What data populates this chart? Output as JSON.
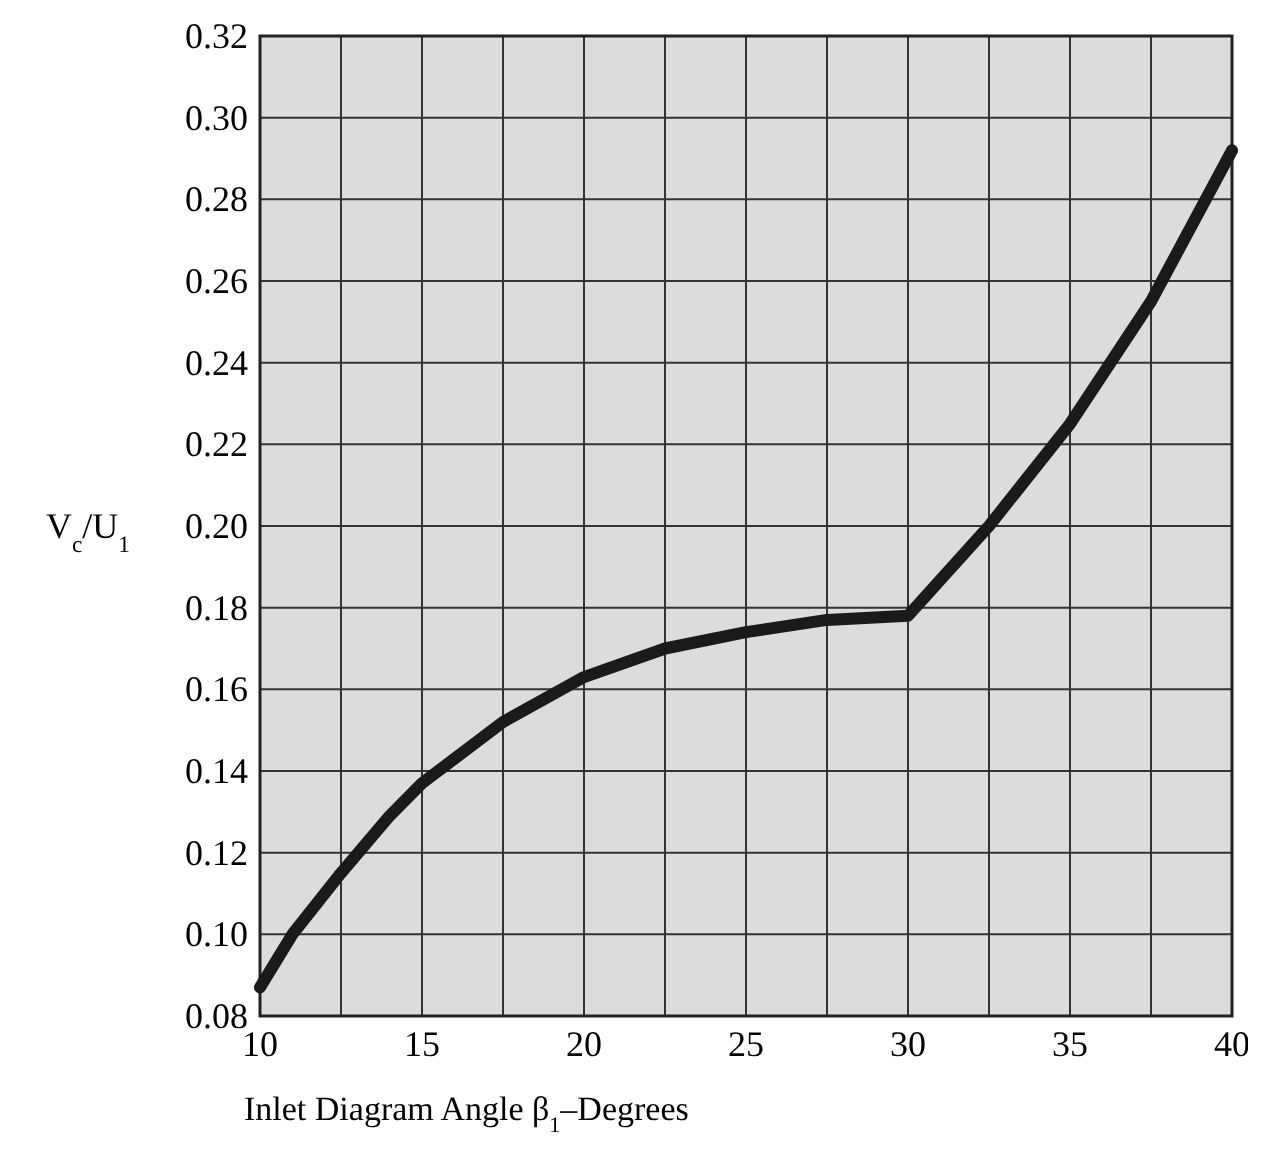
{
  "chart_data": {
    "type": "line",
    "xlabel": "Inlet Diagram Angle β$_{1}$–Degrees",
    "ylabel": "V$_{c}$/U$_{1}$",
    "x": [
      10,
      11,
      12.5,
      14,
      15,
      17.5,
      20,
      22.5,
      25,
      27.5,
      30,
      32.5,
      35,
      37.5,
      40
    ],
    "series": [
      {
        "color": "#1a1a1a",
        "values": [
          0.087,
          0.1,
          0.115,
          0.129,
          0.137,
          0.152,
          0.163,
          0.17,
          0.174,
          0.177,
          0.178,
          0.2,
          0.225,
          0.255,
          0.292
        ]
      }
    ],
    "xlim": [
      10,
      40
    ],
    "xticks": [
      10,
      {
        "value": 12.5,
        "label": null
      },
      15,
      {
        "value": 17.5,
        "label": null
      },
      20,
      {
        "value": 22.5,
        "label": null
      },
      25,
      {
        "value": 27.5,
        "label": null
      },
      30,
      {
        "value": 32.5,
        "label": null
      },
      35,
      {
        "value": 37.5,
        "label": null
      },
      40
    ],
    "ylim": [
      0.08,
      0.32
    ],
    "yticks": [
      {
        "value": 0.08,
        "label": "0.08"
      },
      {
        "value": 0.1,
        "label": "0.10"
      },
      {
        "value": 0.12,
        "label": "0.12"
      },
      {
        "value": 0.14,
        "label": "0.14"
      },
      {
        "value": 0.16,
        "label": "0.16"
      },
      {
        "value": 0.18,
        "label": "0.18"
      },
      {
        "value": 0.2,
        "label": "0.20"
      },
      {
        "value": 0.22,
        "label": "0.22"
      },
      {
        "value": 0.24,
        "label": "0.24"
      },
      {
        "value": 0.26,
        "label": "0.26"
      },
      {
        "value": 0.28,
        "label": "0.28"
      },
      {
        "value": 0.3,
        "label": "0.30"
      },
      {
        "value": 0.32,
        "label": "0.32"
      }
    ],
    "grid": true,
    "marker": "none",
    "line_style": "solid"
  }
}
